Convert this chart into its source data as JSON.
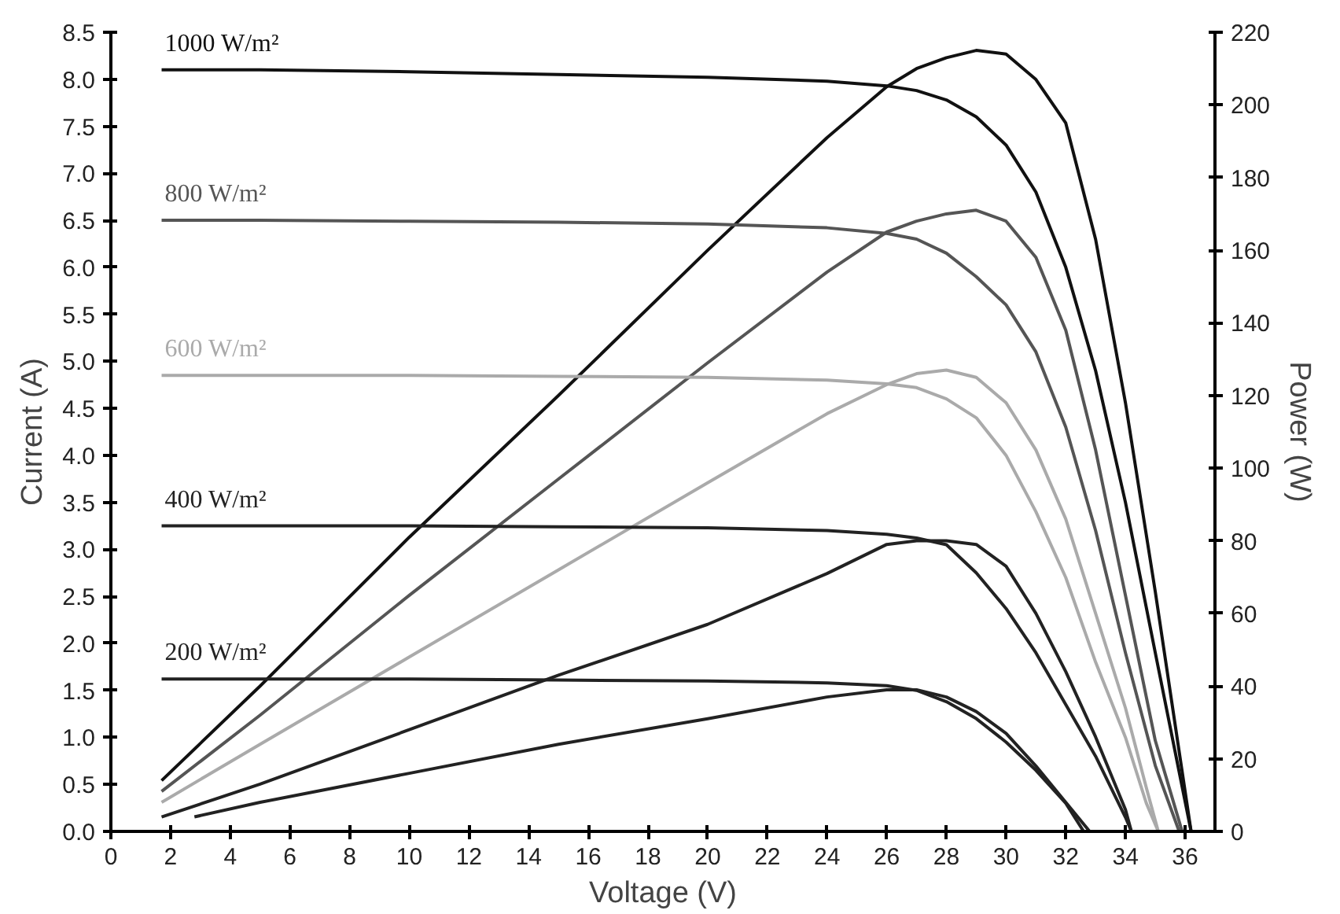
{
  "chart_data": {
    "type": "line",
    "xlabel": "Voltage (V)",
    "ylabel": "Current (A)",
    "y2label": "Power (W)",
    "xlim": [
      0,
      37
    ],
    "ylim": [
      0,
      8.5
    ],
    "y2lim": [
      0,
      220
    ],
    "xticks": [
      0,
      2,
      4,
      6,
      8,
      10,
      12,
      14,
      16,
      18,
      20,
      22,
      24,
      26,
      28,
      30,
      32,
      34,
      36
    ],
    "yticks": [
      {
        "value": 0,
        "label": "0.0"
      },
      {
        "value": 0.5,
        "label": "0.5"
      },
      {
        "value": 1,
        "label": "1.0"
      },
      {
        "value": 1.5,
        "label": "1.5"
      },
      {
        "value": 2,
        "label": "2.0"
      },
      {
        "value": 2.5,
        "label": "2.5"
      },
      {
        "value": 3,
        "label": "3.0"
      },
      {
        "value": 3.5,
        "label": "3.5"
      },
      {
        "value": 4,
        "label": "4.0"
      },
      {
        "value": 4.5,
        "label": "4.5"
      },
      {
        "value": 5,
        "label": "5.0"
      },
      {
        "value": 5.5,
        "label": "5.5"
      },
      {
        "value": 6,
        "label": "6.0"
      },
      {
        "value": 6.5,
        "label": "6.5"
      },
      {
        "value": 7,
        "label": "7.0"
      },
      {
        "value": 7.5,
        "label": "7.5"
      },
      {
        "value": 8,
        "label": "8.0"
      },
      {
        "value": 8.5,
        "label": "8.5"
      }
    ],
    "y2ticks": [
      0,
      20,
      40,
      60,
      80,
      100,
      120,
      140,
      160,
      180,
      200,
      220
    ],
    "marker": "none",
    "line_style": "solid",
    "series": [
      {
        "name": "1000 W/m²",
        "color": "#111111",
        "x": [
          1.7,
          5,
          10,
          15,
          20,
          24,
          26,
          27,
          28,
          29,
          30,
          31,
          32,
          33,
          34,
          35,
          36.2
        ],
        "values": [
          8.1,
          8.1,
          8.08,
          8.05,
          8.02,
          7.98,
          7.93,
          7.88,
          7.78,
          7.6,
          7.3,
          6.8,
          6.0,
          4.9,
          3.5,
          1.9,
          0
        ]
      },
      {
        "color": "#111111",
        "axis": "y2",
        "x": [
          1.7,
          5,
          10,
          15,
          20,
          24,
          26,
          27,
          28,
          29,
          30,
          31,
          32,
          33,
          34,
          35,
          36.2
        ],
        "values": [
          14,
          40,
          81,
          120,
          160,
          191,
          205,
          210,
          213,
          215,
          214,
          207,
          195,
          163,
          118,
          66,
          0
        ]
      },
      {
        "name": "800 W/m²",
        "color": "#555555",
        "x": [
          1.7,
          5,
          10,
          15,
          20,
          24,
          26,
          27,
          28,
          29,
          30,
          31,
          32,
          33,
          34,
          35,
          35.8
        ],
        "values": [
          6.5,
          6.5,
          6.49,
          6.48,
          6.46,
          6.42,
          6.36,
          6.3,
          6.15,
          5.9,
          5.6,
          5.1,
          4.3,
          3.2,
          1.9,
          0.7,
          0
        ]
      },
      {
        "color": "#555555",
        "axis": "y2",
        "x": [
          1.7,
          5,
          10,
          15,
          20,
          24,
          26,
          27,
          28,
          29,
          30,
          31,
          32,
          33,
          34,
          35,
          35.9
        ],
        "values": [
          11,
          32,
          65,
          97,
          129,
          154,
          165,
          168,
          170,
          171,
          168,
          158,
          138,
          105,
          65,
          25,
          0
        ]
      },
      {
        "name": "600 W/m²",
        "color": "#aaaaaa",
        "x": [
          1.7,
          5,
          10,
          15,
          20,
          24,
          26,
          27,
          28,
          29,
          30,
          31,
          32,
          33,
          34,
          34.7,
          35.1
        ],
        "values": [
          4.85,
          4.85,
          4.85,
          4.84,
          4.83,
          4.8,
          4.76,
          4.72,
          4.6,
          4.4,
          4.0,
          3.4,
          2.7,
          1.8,
          1.0,
          0.3,
          0
        ]
      },
      {
        "color": "#aaaaaa",
        "axis": "y2",
        "x": [
          1.7,
          5,
          10,
          15,
          20,
          24,
          26,
          27,
          28,
          29,
          30,
          31,
          32,
          33,
          34,
          34.7,
          35.1
        ],
        "values": [
          8,
          24,
          48,
          72,
          96,
          115,
          123,
          126,
          127,
          125,
          118,
          105,
          86,
          60,
          34,
          12,
          0
        ]
      },
      {
        "name": "400 W/m²",
        "color": "#222222",
        "x": [
          1.7,
          5,
          10,
          15,
          20,
          24,
          26,
          27,
          28,
          29,
          30,
          31,
          32,
          33,
          34,
          34.2
        ],
        "values": [
          3.25,
          3.25,
          3.25,
          3.24,
          3.23,
          3.2,
          3.16,
          3.12,
          3.05,
          2.75,
          2.37,
          1.9,
          1.35,
          0.8,
          0.15,
          0
        ]
      },
      {
        "color": "#222222",
        "axis": "y2",
        "x": [
          1.7,
          5,
          10,
          15,
          20,
          24,
          26,
          27,
          28,
          29,
          30,
          31,
          32,
          33,
          34,
          34.2
        ],
        "values": [
          4,
          13,
          28,
          43,
          57,
          71,
          79,
          80,
          80,
          79,
          73,
          60,
          44,
          26,
          6,
          0
        ]
      },
      {
        "name": "200 W/m²",
        "color": "#222222",
        "x": [
          1.7,
          5,
          10,
          15,
          20,
          24,
          26,
          27,
          28,
          29,
          30,
          31,
          32,
          32.6
        ],
        "values": [
          1.62,
          1.62,
          1.62,
          1.61,
          1.6,
          1.58,
          1.55,
          1.5,
          1.38,
          1.2,
          0.95,
          0.65,
          0.3,
          0
        ]
      },
      {
        "color": "#222222",
        "axis": "y2",
        "x": [
          2.8,
          5,
          10,
          15,
          20,
          24,
          26,
          27,
          28,
          29,
          30,
          31,
          32,
          32.8
        ],
        "values": [
          4,
          8,
          16,
          24,
          31,
          37,
          39,
          39,
          37,
          33,
          27,
          18,
          8,
          0
        ]
      }
    ]
  }
}
